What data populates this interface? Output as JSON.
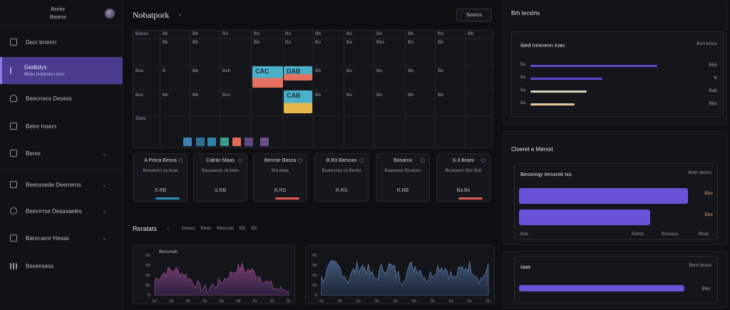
{
  "brand": {
    "line1": "Bxolor",
    "line2": "Basexs"
  },
  "sidebar": {
    "items": [
      {
        "label": "Decr brrerrn"
      },
      {
        "label": "Gedkdys",
        "sub": "Bktbs brddcnbrs bocr"
      },
      {
        "label": "Beecrrecs Desexs"
      },
      {
        "label": "Betre Insers"
      },
      {
        "label": "Beres"
      },
      {
        "label": "Beenssede Deerrerns"
      },
      {
        "label": "Beecrrrse Desasaeles"
      },
      {
        "label": "Barrrcarnr Hesas"
      },
      {
        "label": "Besensess"
      }
    ]
  },
  "header": {
    "title": "Nobatpork",
    "action_label": "Sourcs"
  },
  "calendar": {
    "columns": [
      "Baces",
      "Bk",
      "Bb",
      "Bo",
      "Bo",
      "Bo",
      "Bb",
      "Bo",
      "Bo",
      "Bb",
      "Bo",
      "Bb"
    ],
    "row_labels": [
      "",
      "Bus",
      "Bxs",
      "Sbes"
    ],
    "row1_nums": [
      "Bk",
      "Bb",
      "",
      "Bb",
      "Bo",
      "Bo",
      "Ba",
      "Bbs",
      "Bo",
      "Bb"
    ],
    "row2_nums": [
      "B",
      "Bb",
      "Bxb",
      "",
      "",
      "Bb",
      "Bo",
      "Bo",
      "Bb",
      "Bb"
    ],
    "row3_nums": [
      "Bb",
      "Bb",
      "Bxs",
      "",
      "",
      "Bb",
      "Bo",
      "Bo",
      "Bb",
      "Bb"
    ],
    "events": [
      {
        "label": "CAC"
      },
      {
        "label": "DAB"
      },
      {
        "label": "CAB"
      }
    ],
    "legend_colors": [
      "#3f7fb0",
      "#2f6f95",
      "#2b84a8",
      "#3a9b8a",
      "#e56b5c",
      "#5a4a82",
      "#6a4f8a"
    ]
  },
  "cards": [
    {
      "title": "A Potca Besca",
      "sub": "Brsearrdo ca bcaa",
      "value": "S.RB",
      "accent": "#2b8fb8"
    },
    {
      "title": "Catrac Maas",
      "sub": "Bacaaecac cb bees",
      "value": "S.RB",
      "accent": ""
    },
    {
      "title": "Bercrar Basca",
      "sub": "Bra beae",
      "value": "R.RS",
      "accent": "#e05a52"
    },
    {
      "title": "B.B3 Barscas",
      "sub": "Bsarescao ca Becka",
      "value": "R.RS",
      "accent": ""
    },
    {
      "title": "Basarca",
      "sub": "Baaasees Bcsaces",
      "value": "R.RB",
      "accent": ""
    },
    {
      "title": "S.3 Braex",
      "sub": "Brcacecer Bce Bcb",
      "value": "Ba.Bs",
      "accent": "#e05a52"
    }
  ],
  "activity": {
    "title": "Reratats",
    "tabs": [
      "Depec",
      "Beas",
      "Beecras",
      "BE",
      "BE"
    ],
    "left_chart": {
      "title": "Bersreah",
      "yticks": [
        "Bb",
        "Bb",
        "Bb",
        "Bb",
        "B"
      ],
      "xlabels": [
        "Bs",
        "Bb",
        "Bb",
        "Bs",
        "Bb",
        "Bb",
        "Bs",
        "Bb",
        "Bb"
      ]
    },
    "right_chart": {
      "yticks": [
        "Bb",
        "Bb",
        "Bb",
        "Bb",
        "B"
      ],
      "xlabels": [
        "Bs",
        "Bb",
        "Bs",
        "Bb",
        "Bs",
        "Bb",
        "Bb",
        "Bs",
        "Bs",
        "Bb"
      ]
    }
  },
  "right": {
    "panel1": {
      "title": "Brh tecstns",
      "inner_title": "Ibed Iresnenn Inas",
      "inner_right": "Bsni bsscs",
      "rows": [
        {
          "label": "Ba",
          "value": "Bbb",
          "fill": 0.74,
          "color": "#5b4ad0"
        },
        {
          "label": "Ba",
          "value": "B",
          "fill": 0.42,
          "color": "#5b4ad0"
        },
        {
          "label": "Ba",
          "value": "Bab",
          "fill": 0.33,
          "color": "#d6d1b8"
        },
        {
          "label": "Ba",
          "value": "Bbs",
          "fill": 0.26,
          "color": "#e7c79a"
        }
      ]
    },
    "panel2": {
      "title": "Cloeret e Mersst",
      "inner_title": "Bessreqy Iressrek Ixs",
      "inner_right": "Bnbn Ibrrrcc",
      "bars": [
        {
          "value": "Bbe",
          "fill": 0.93
        },
        {
          "value": "Bbe",
          "fill": 0.72
        }
      ],
      "xlabels": [
        "Bab",
        "Bsbbs",
        "Bsbeaas",
        "Bbab"
      ]
    },
    "panel3": {
      "title": "Iaas",
      "right": "Bbnrl bsnss",
      "value": "Bbb",
      "fill": 0.86
    }
  }
}
